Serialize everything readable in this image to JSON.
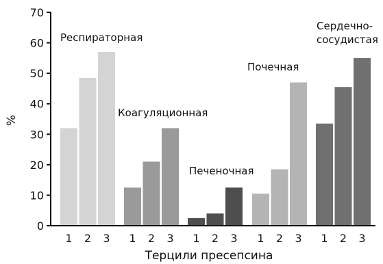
{
  "chart_data": {
    "type": "bar",
    "ylabel": "%",
    "xlabel": "Терцили пресепсина",
    "ylim": [
      0,
      70
    ],
    "yticks": [
      "0",
      "10",
      "20",
      "30",
      "40",
      "50",
      "60",
      "70"
    ],
    "grid": false,
    "categories": [
      "1",
      "2",
      "3"
    ],
    "groups": [
      {
        "name": "Респираторная",
        "name_lines": [
          "Респираторная"
        ],
        "values": [
          32,
          48.5,
          57
        ],
        "colors": [
          "#d4d4d4",
          "#d4d4d4",
          "#d4d4d4"
        ]
      },
      {
        "name": "Коагуляционная",
        "name_lines": [
          "Коагуляционная"
        ],
        "values": [
          12.5,
          21,
          32
        ],
        "colors": [
          "#9a9a9a",
          "#9a9a9a",
          "#9a9a9a"
        ]
      },
      {
        "name": "Печеночная",
        "name_lines": [
          "Печеночная"
        ],
        "values": [
          2.5,
          4,
          12.5
        ],
        "colors": [
          "#4e4e4e",
          "#4e4e4e",
          "#4e4e4e"
        ]
      },
      {
        "name": "Почечная",
        "name_lines": [
          "Почечная"
        ],
        "values": [
          10.5,
          18.5,
          47
        ],
        "colors": [
          "#b4b4b4",
          "#b4b4b4",
          "#b4b4b4"
        ]
      },
      {
        "name": "Сердечно-сосудистая",
        "name_lines": [
          "Сердечно-",
          "сосудистая"
        ],
        "values": [
          33.5,
          45.5,
          55
        ],
        "colors": [
          "#707070",
          "#707070",
          "#707070"
        ]
      }
    ]
  }
}
